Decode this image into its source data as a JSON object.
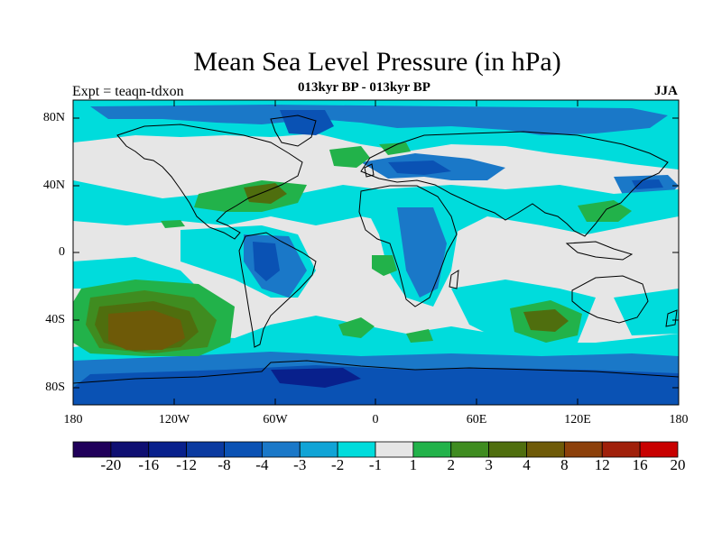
{
  "title": "Mean Sea Level Pressure (in hPa)",
  "subtitle": "013kyr BP - 013kyr BP",
  "left_label": "Expt = teaqn-tdxon",
  "right_label": "JJA",
  "lat_labels": [
    "80N",
    "40N",
    "0",
    "40S",
    "80S"
  ],
  "lon_labels": [
    "180",
    "120W",
    "60W",
    "0",
    "60E",
    "120E",
    "180"
  ],
  "colorbar": {
    "labels": [
      "-20",
      "-16",
      "-12",
      "-8",
      "-4",
      "-3",
      "-2",
      "-1",
      "1",
      "2",
      "3",
      "4",
      "8",
      "12",
      "16",
      "20"
    ],
    "colors": [
      "#20005a",
      "#0f0f72",
      "#08208c",
      "#0a3aa0",
      "#0a52b4",
      "#1a78c8",
      "#10a4d6",
      "#00dcdc",
      "#e6e6e6",
      "#22b24a",
      "#3f8c20",
      "#4f6e0e",
      "#6e5a08",
      "#8c400a",
      "#a0200a",
      "#c80000"
    ]
  }
}
